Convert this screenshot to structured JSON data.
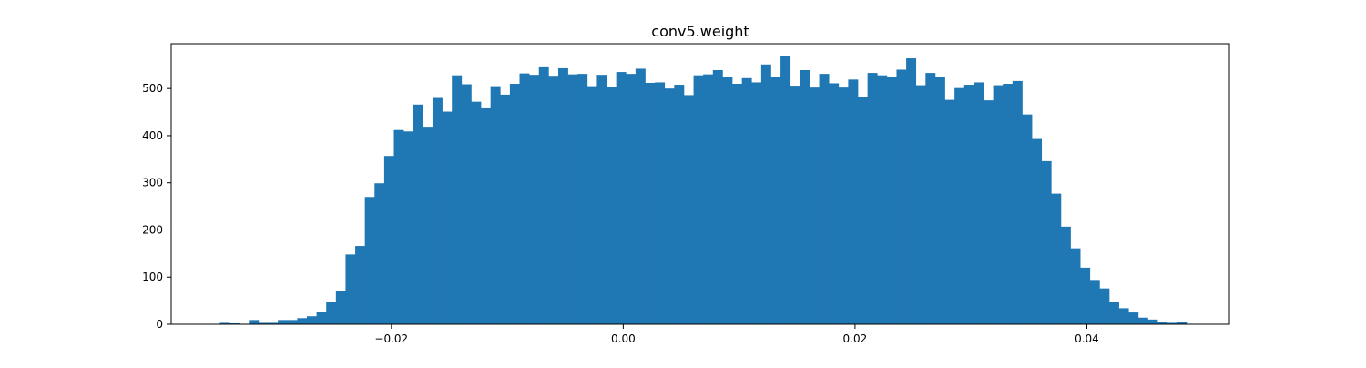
{
  "chart_data": {
    "type": "bar",
    "title": "conv5.weight",
    "xlabel": "",
    "ylabel": "",
    "xlim": [
      -0.039,
      0.0523
    ],
    "ylim": [
      0,
      595
    ],
    "grid": false,
    "bar_color": "#1f77b4",
    "bin_start": -0.0348,
    "bin_width": 0.000834,
    "x_ticks": [
      -0.02,
      0.0,
      0.02,
      0.04
    ],
    "x_tick_labels": [
      "−0.02",
      "0.00",
      "0.02",
      "0.04"
    ],
    "y_ticks": [
      0,
      100,
      200,
      300,
      400,
      500
    ],
    "y_tick_labels": [
      "0",
      "100",
      "200",
      "300",
      "400",
      "500"
    ],
    "values": [
      3,
      2,
      1,
      9,
      3,
      3,
      9,
      9,
      13,
      17,
      27,
      48,
      70,
      148,
      166,
      270,
      299,
      357,
      412,
      409,
      466,
      419,
      480,
      451,
      528,
      509,
      472,
      458,
      505,
      487,
      510,
      532,
      529,
      545,
      527,
      543,
      530,
      531,
      505,
      529,
      503,
      535,
      531,
      542,
      512,
      513,
      500,
      508,
      486,
      528,
      530,
      539,
      524,
      510,
      522,
      513,
      551,
      525,
      568,
      506,
      539,
      502,
      531,
      511,
      502,
      519,
      482,
      533,
      528,
      524,
      540,
      564,
      507,
      533,
      524,
      476,
      501,
      508,
      513,
      475,
      507,
      510,
      516,
      445,
      393,
      346,
      277,
      207,
      161,
      120,
      94,
      76,
      47,
      34,
      25,
      14,
      10,
      5,
      3,
      4
    ]
  }
}
